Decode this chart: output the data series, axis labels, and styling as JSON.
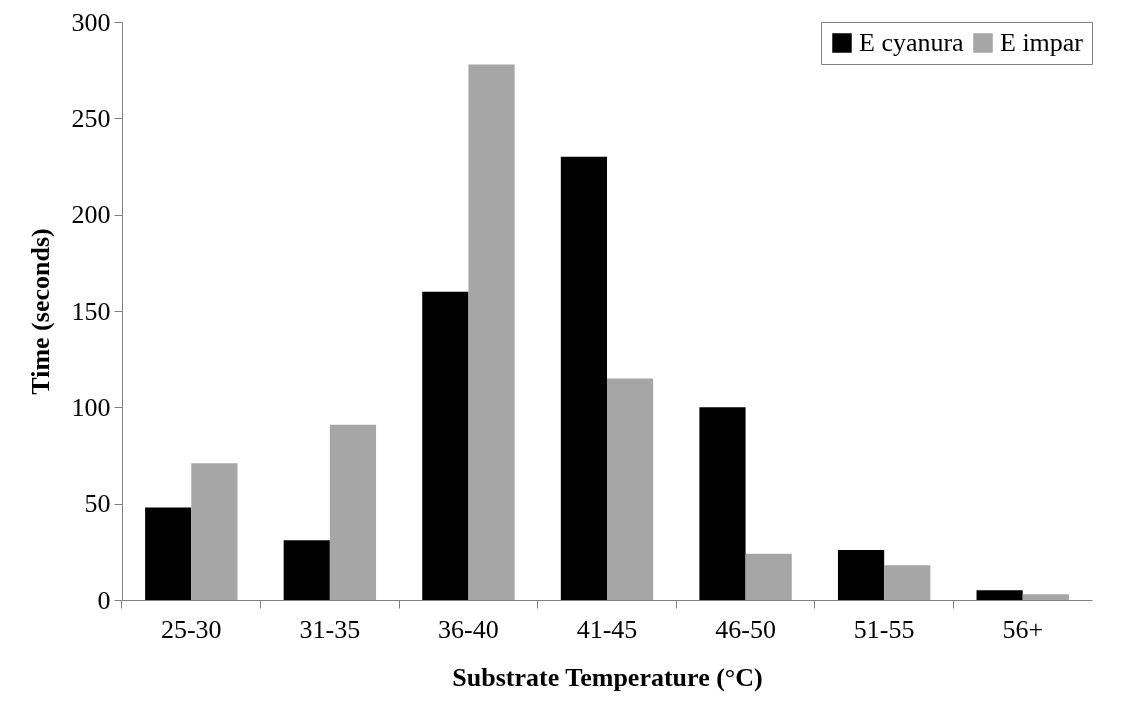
{
  "chart_data": {
    "type": "bar",
    "xlabel": "Substrate Temperature (°C)",
    "ylabel": "Time (seconds)",
    "categories": [
      "25-30",
      "31-35",
      "36-40",
      "41-45",
      "46-50",
      "51-55",
      "56+"
    ],
    "series": [
      {
        "name": "E cyanura",
        "color": "#000000",
        "values": [
          48,
          31,
          160,
          230,
          100,
          26,
          5
        ]
      },
      {
        "name": "E impar",
        "color": "#a6a6a6",
        "values": [
          71,
          91,
          278,
          115,
          24,
          18,
          3
        ]
      }
    ],
    "ylim": [
      0,
      300
    ],
    "yticks": [
      0,
      50,
      100,
      150,
      200,
      250,
      300
    ],
    "grid": false,
    "legend": "top right"
  }
}
